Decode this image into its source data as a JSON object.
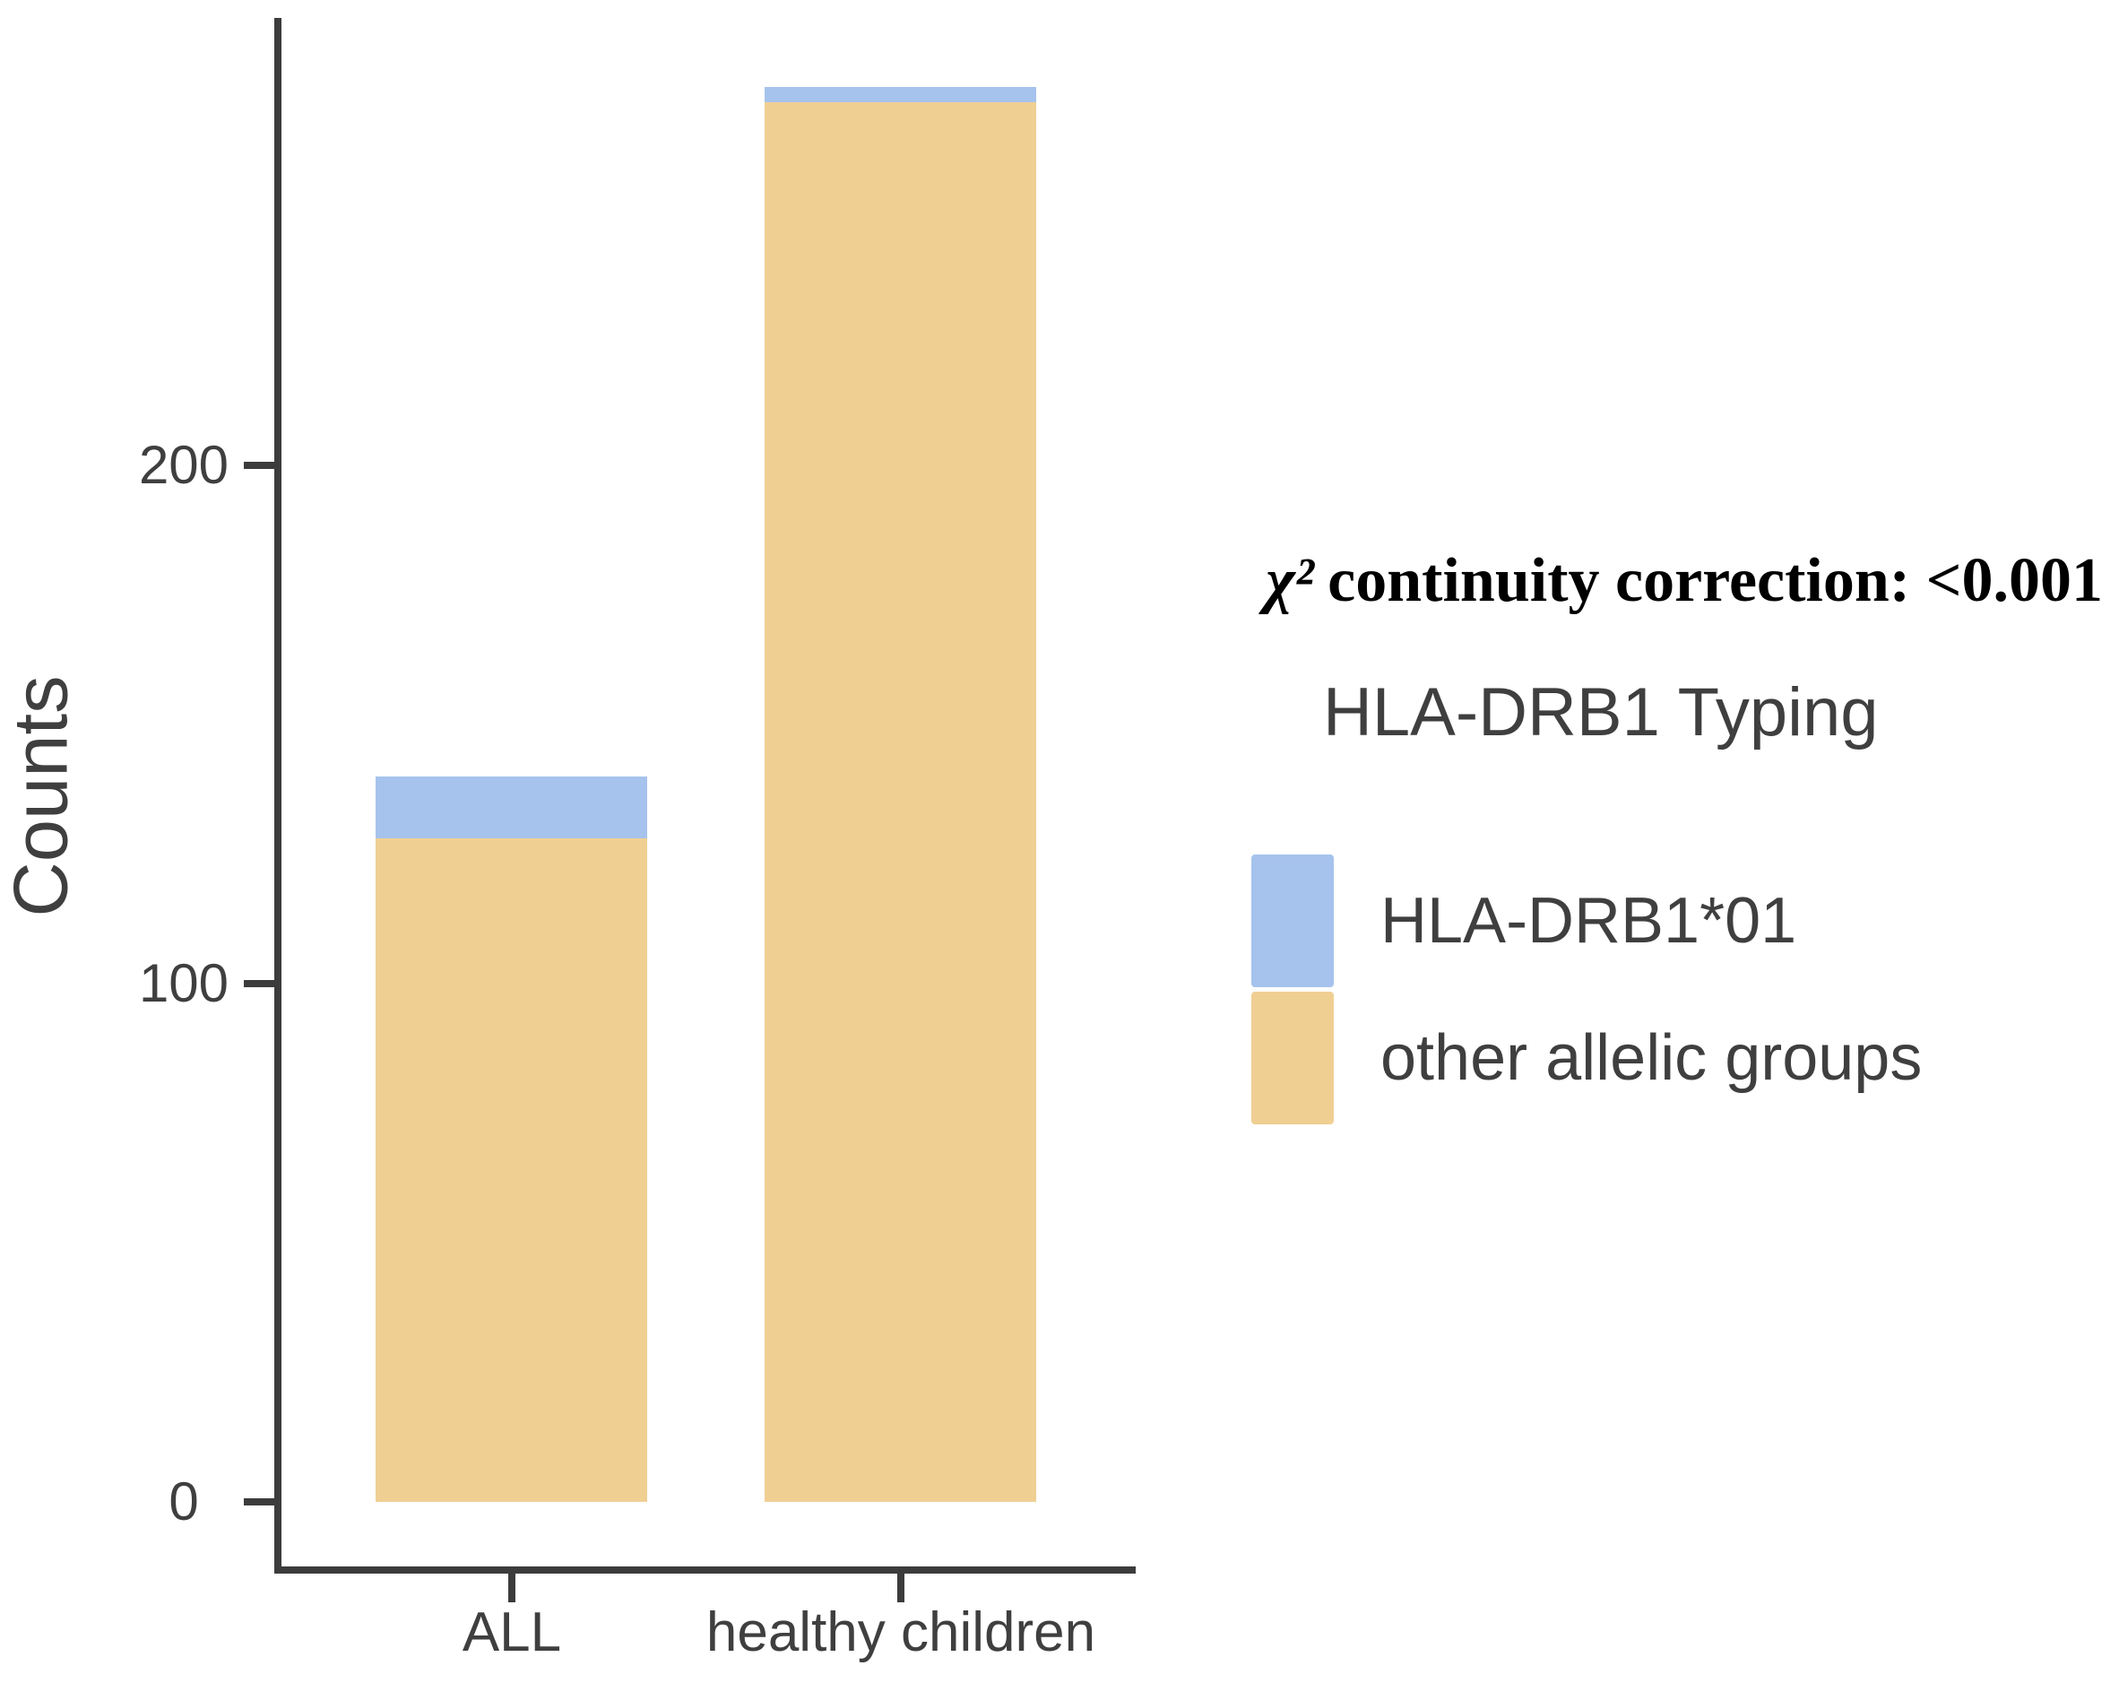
{
  "figure": {
    "annotation": {
      "chi": "χ²",
      "rest": "continuity correction: <0.001"
    },
    "colors": {
      "drb101_blue": "#a6c3ed",
      "other_tan": "#f0cf93",
      "axis": "#3c3c3c",
      "text": "#3f3f3f"
    }
  },
  "legend": {
    "title": "HLA-DRB1 Typing",
    "items": [
      {
        "label": "HLA-DRB1*01",
        "color": "#a6c3ed"
      },
      {
        "label": "other allelic groups",
        "color": "#f0cf93"
      }
    ]
  },
  "chart_data": {
    "type": "bar",
    "stacked": true,
    "title": "",
    "categories": [
      "ALL",
      "healthy children"
    ],
    "series": [
      {
        "name": "HLA-DRB1*01",
        "color": "#a6c3ed",
        "values": [
          12,
          3
        ]
      },
      {
        "name": "other allelic groups",
        "color": "#f0cf93",
        "values": [
          128,
          270
        ]
      }
    ],
    "totals": [
      140,
      273
    ],
    "xlabel": "",
    "ylabel": "Counts",
    "yticks": [
      0,
      100,
      200
    ],
    "ylim": [
      0,
      285
    ],
    "grid": false,
    "legend_position": "right",
    "legend_title": "HLA-DRB1 Typing",
    "annotation": "χ² continuity correction: <0.001",
    "annotation_test": "χ² continuity correction",
    "annotation_p_value": "<0.001"
  }
}
